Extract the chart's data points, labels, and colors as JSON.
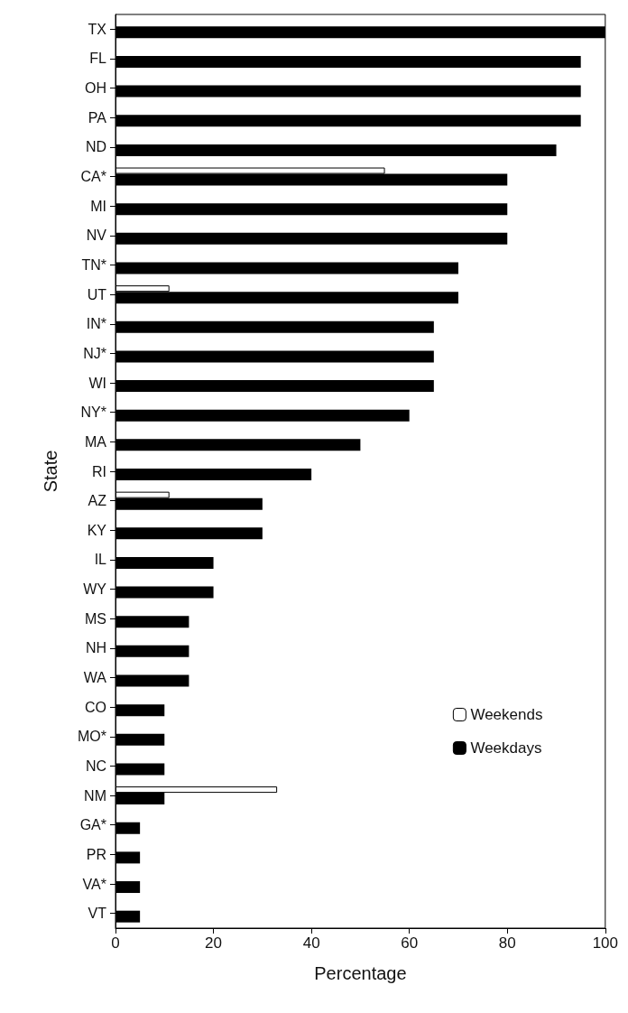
{
  "chart_data": {
    "type": "bar",
    "orientation": "horizontal",
    "xlabel": "Percentage",
    "ylabel": "State",
    "categories": [
      "TX",
      "FL",
      "OH",
      "PA",
      "ND",
      "CA*",
      "MI",
      "NV",
      "TN*",
      "UT",
      "IN*",
      "NJ*",
      "WI",
      "NY*",
      "MA",
      "RI",
      "AZ",
      "KY",
      "IL",
      "WY",
      "MS",
      "NH",
      "WA",
      "CO",
      "MO*",
      "NC",
      "NM",
      "GA*",
      "PR",
      "VA*",
      "VT"
    ],
    "series": [
      {
        "name": "Weekends",
        "color": "#ffffff",
        "values": [
          null,
          null,
          null,
          null,
          null,
          55,
          null,
          null,
          null,
          11,
          null,
          null,
          null,
          null,
          null,
          null,
          11,
          null,
          null,
          null,
          null,
          null,
          null,
          null,
          null,
          null,
          33,
          null,
          null,
          null,
          null
        ]
      },
      {
        "name": "Weekdays",
        "color": "#000000",
        "values": [
          100,
          95,
          95,
          95,
          90,
          80,
          80,
          80,
          70,
          70,
          65,
          65,
          65,
          60,
          50,
          40,
          30,
          30,
          20,
          20,
          15,
          15,
          15,
          10,
          10,
          10,
          10,
          5,
          5,
          5,
          5
        ]
      }
    ],
    "xlim": [
      0,
      100
    ],
    "xticks": [
      0,
      20,
      40,
      60,
      80,
      100
    ],
    "grid": false,
    "legend": "right"
  }
}
